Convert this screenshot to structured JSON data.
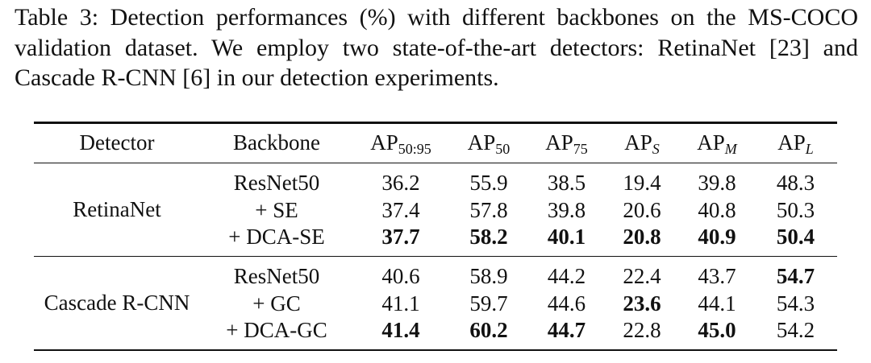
{
  "caption": {
    "lines": [
      "Table 3: Detection performances (%) with different backbones on the MS-COCO",
      "validation dataset. We employ two state-of-the-art detectors: RetinaNet [23] and",
      "Cascade R-CNN [6] in our detection experiments."
    ]
  },
  "table": {
    "headers": [
      {
        "main": "Detector",
        "sub": ""
      },
      {
        "main": "Backbone",
        "sub": ""
      },
      {
        "main": "AP",
        "sub": "50:95"
      },
      {
        "main": "AP",
        "sub": "50"
      },
      {
        "main": "AP",
        "sub": "75"
      },
      {
        "main": "AP",
        "sub": "S",
        "italic": true
      },
      {
        "main": "AP",
        "sub": "M",
        "italic": true
      },
      {
        "main": "AP",
        "sub": "L",
        "italic": true
      }
    ],
    "groups": [
      {
        "detector": "RetinaNet",
        "rows": [
          {
            "backbone": "ResNet50",
            "values": [
              "36.2",
              "55.9",
              "38.5",
              "19.4",
              "39.8",
              "48.3"
            ],
            "bold": [
              false,
              false,
              false,
              false,
              false,
              false
            ]
          },
          {
            "backbone": "+ SE",
            "values": [
              "37.4",
              "57.8",
              "39.8",
              "20.6",
              "40.8",
              "50.3"
            ],
            "bold": [
              false,
              false,
              false,
              false,
              false,
              false
            ]
          },
          {
            "backbone": "+ DCA-SE",
            "values": [
              "37.7",
              "58.2",
              "40.1",
              "20.8",
              "40.9",
              "50.4"
            ],
            "bold": [
              true,
              true,
              true,
              true,
              true,
              true
            ]
          }
        ]
      },
      {
        "detector": "Cascade R-CNN",
        "rows": [
          {
            "backbone": "ResNet50",
            "values": [
              "40.6",
              "58.9",
              "44.2",
              "22.4",
              "43.7",
              "54.7"
            ],
            "bold": [
              false,
              false,
              false,
              false,
              false,
              true
            ]
          },
          {
            "backbone": "+ GC",
            "values": [
              "41.1",
              "59.7",
              "44.6",
              "23.6",
              "44.1",
              "54.3"
            ],
            "bold": [
              false,
              false,
              false,
              true,
              false,
              false
            ]
          },
          {
            "backbone": "+ DCA-GC",
            "values": [
              "41.4",
              "60.2",
              "44.7",
              "22.8",
              "45.0",
              "54.2"
            ],
            "bold": [
              true,
              true,
              true,
              false,
              true,
              false
            ]
          }
        ]
      }
    ]
  }
}
